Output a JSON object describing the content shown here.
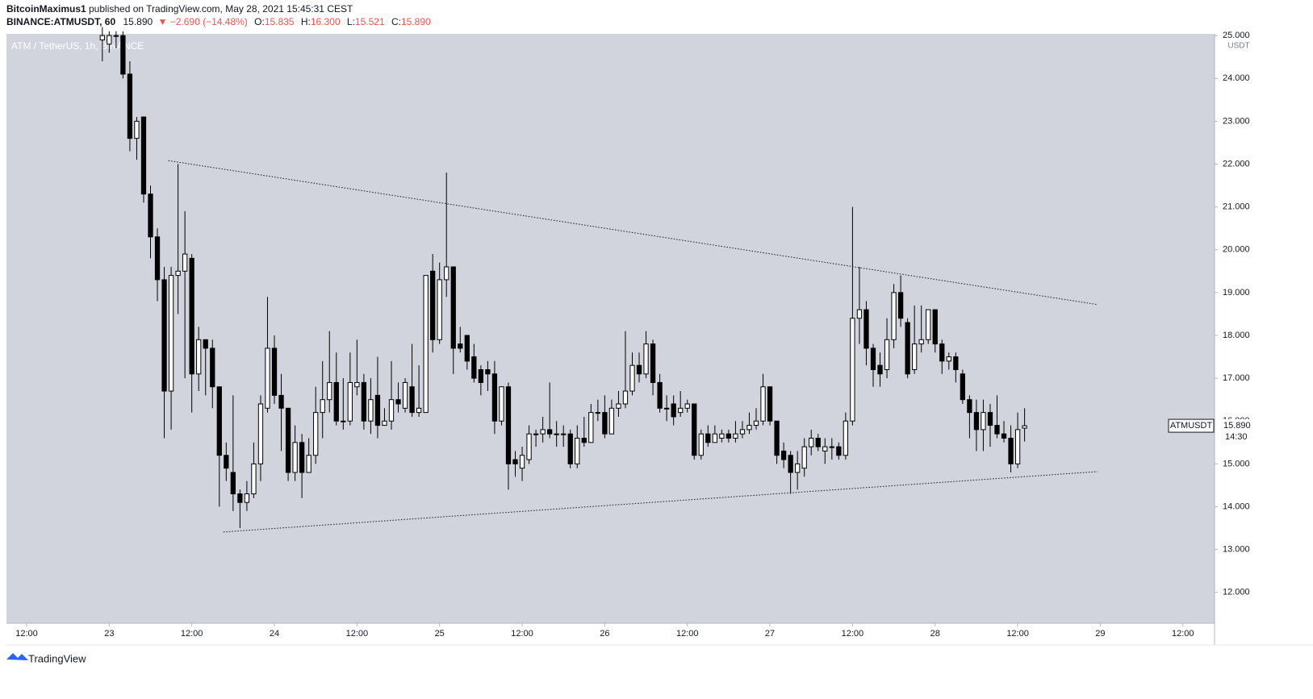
{
  "header": {
    "author": "BitcoinMaximus1",
    "published": "published on TradingView.com, May 28, 2021 15:45:31 CEST",
    "symbol": "BINANCE:ATMUSDT, 60",
    "last": "15.890",
    "change": "▼ −2.690 (−14.48%)",
    "o_label": "O:",
    "o": "15.835",
    "h_label": "H:",
    "h": "16.300",
    "l_label": "L:",
    "l": "15.521",
    "c_label": "C:",
    "c": "15.890"
  },
  "footer": {
    "brand": "TradingView"
  },
  "chart_data": {
    "type": "candlestick",
    "title": "ATM / TetherUS, 1h, BINANCE",
    "y_unit": "USDT",
    "up_color": "#ffffff",
    "down_color": "#000000",
    "grid": false,
    "xlim": [
      9.07,
      184.6
    ],
    "ylim": [
      11.28,
      25.04
    ],
    "xticks": [
      {
        "value": 12,
        "label": "12:00"
      },
      {
        "value": 24,
        "label": "23"
      },
      {
        "value": 36,
        "label": "12:00"
      },
      {
        "value": 48,
        "label": "24"
      },
      {
        "value": 60,
        "label": "12:00"
      },
      {
        "value": 72,
        "label": "25"
      },
      {
        "value": 84,
        "label": "12:00"
      },
      {
        "value": 96,
        "label": "26"
      },
      {
        "value": 108,
        "label": "12:00"
      },
      {
        "value": 120,
        "label": "27"
      },
      {
        "value": 132,
        "label": "12:00"
      },
      {
        "value": 144,
        "label": "28"
      },
      {
        "value": 156,
        "label": "12:00"
      },
      {
        "value": 168,
        "label": "29"
      },
      {
        "value": 180,
        "label": "12:00"
      }
    ],
    "yticks": [
      {
        "value": 12,
        "label": "12.000"
      },
      {
        "value": 13,
        "label": "13.000"
      },
      {
        "value": 14,
        "label": "14.000"
      },
      {
        "value": 15,
        "label": "15.000"
      },
      {
        "value": 16,
        "label": "16.000"
      },
      {
        "value": 17,
        "label": "17.000"
      },
      {
        "value": 18,
        "label": "18.000"
      },
      {
        "value": 19,
        "label": "19.000"
      },
      {
        "value": 20,
        "label": "20.000"
      },
      {
        "value": 21,
        "label": "21.000"
      },
      {
        "value": 22,
        "label": "22.000"
      },
      {
        "value": 23,
        "label": "23.000"
      },
      {
        "value": 24,
        "label": "24.000"
      },
      {
        "value": 25,
        "label": "25.000"
      }
    ],
    "x": [
      23,
      24,
      25,
      26,
      27,
      28,
      29,
      30,
      31,
      32,
      33,
      34,
      35,
      36,
      37,
      38,
      39,
      40,
      41,
      42,
      43,
      44,
      45,
      46,
      47,
      48,
      49,
      50,
      51,
      52,
      53,
      54,
      55,
      56,
      57,
      58,
      59,
      60,
      61,
      62,
      63,
      64,
      65,
      66,
      67,
      68,
      69,
      70,
      71,
      72,
      73,
      74,
      75,
      76,
      77,
      78,
      79,
      80,
      81,
      82,
      83,
      84,
      85,
      86,
      87,
      88,
      89,
      90,
      91,
      92,
      93,
      94,
      95,
      96,
      97,
      98,
      99,
      100,
      101,
      102,
      103,
      104,
      105,
      106,
      107,
      108,
      109,
      110,
      111,
      112,
      113,
      114,
      115,
      116,
      117,
      118,
      119,
      120,
      121,
      122,
      123,
      124,
      125,
      126,
      127,
      128,
      129,
      130,
      131,
      132,
      133,
      134,
      135,
      136,
      137,
      138,
      139,
      140,
      141,
      142,
      143,
      144,
      145,
      146,
      147,
      148,
      149,
      150,
      151,
      152,
      153,
      154,
      155,
      156,
      157
    ],
    "ohlc": [
      [
        24.9,
        25.2,
        24.4,
        25.0
      ],
      [
        24.8,
        25.1,
        24.6,
        25.0
      ],
      [
        25.0,
        25.1,
        24.7,
        25.0
      ],
      [
        25.0,
        25.1,
        24.0,
        24.1
      ],
      [
        24.1,
        24.4,
        22.3,
        22.6
      ],
      [
        22.6,
        23.1,
        22.1,
        23.0
      ],
      [
        23.1,
        23.1,
        21.1,
        21.3
      ],
      [
        21.3,
        21.5,
        19.8,
        20.3
      ],
      [
        20.3,
        20.5,
        18.8,
        19.3
      ],
      [
        19.3,
        19.6,
        15.6,
        16.7
      ],
      [
        16.7,
        19.6,
        15.8,
        19.4
      ],
      [
        19.4,
        22.0,
        18.5,
        19.5
      ],
      [
        19.5,
        20.9,
        17.0,
        19.9
      ],
      [
        19.8,
        19.9,
        16.2,
        17.1
      ],
      [
        17.1,
        18.2,
        16.7,
        17.9
      ],
      [
        17.9,
        17.9,
        16.6,
        17.7
      ],
      [
        17.7,
        17.9,
        16.3,
        16.8
      ],
      [
        16.8,
        16.8,
        14.0,
        15.2
      ],
      [
        15.2,
        15.5,
        14.6,
        14.9
      ],
      [
        14.8,
        16.6,
        13.9,
        14.3
      ],
      [
        14.3,
        14.4,
        13.5,
        14.1
      ],
      [
        14.1,
        14.6,
        13.9,
        14.3
      ],
      [
        14.3,
        15.5,
        14.2,
        15.0
      ],
      [
        15.0,
        16.6,
        14.6,
        16.4
      ],
      [
        16.3,
        18.9,
        16.2,
        17.7
      ],
      [
        17.7,
        18.0,
        16.4,
        16.6
      ],
      [
        16.6,
        17.1,
        15.3,
        16.3
      ],
      [
        16.3,
        16.3,
        14.6,
        14.8
      ],
      [
        14.8,
        15.9,
        14.6,
        15.5
      ],
      [
        15.5,
        15.7,
        14.2,
        14.8
      ],
      [
        14.8,
        15.6,
        14.8,
        15.2
      ],
      [
        15.2,
        16.8,
        15.0,
        16.2
      ],
      [
        16.2,
        17.4,
        15.6,
        16.5
      ],
      [
        16.5,
        18.1,
        16.2,
        16.9
      ],
      [
        16.9,
        17.6,
        15.9,
        16.0
      ],
      [
        16.0,
        17.0,
        15.8,
        16.0
      ],
      [
        16.0,
        17.6,
        15.9,
        16.9
      ],
      [
        16.8,
        17.9,
        16.6,
        16.9
      ],
      [
        16.9,
        17.1,
        15.8,
        16.0
      ],
      [
        16.0,
        17.0,
        15.7,
        16.5
      ],
      [
        16.6,
        17.5,
        15.6,
        15.9
      ],
      [
        15.9,
        16.3,
        15.9,
        16.0
      ],
      [
        16.0,
        17.4,
        15.8,
        16.5
      ],
      [
        16.5,
        16.9,
        16.2,
        16.4
      ],
      [
        16.3,
        17.0,
        16.2,
        16.9
      ],
      [
        16.8,
        17.8,
        16.1,
        16.2
      ],
      [
        16.2,
        17.3,
        16.1,
        16.3
      ],
      [
        16.2,
        19.4,
        16.2,
        19.4
      ],
      [
        19.5,
        19.9,
        17.6,
        17.9
      ],
      [
        17.9,
        19.7,
        17.8,
        19.3
      ],
      [
        19.3,
        21.8,
        18.9,
        19.6
      ],
      [
        19.6,
        19.6,
        17.1,
        17.7
      ],
      [
        17.8,
        18.2,
        17.6,
        17.7
      ],
      [
        18.0,
        18.0,
        17.2,
        17.4
      ],
      [
        17.5,
        17.8,
        16.9,
        17.0
      ],
      [
        17.2,
        17.3,
        16.6,
        16.9
      ],
      [
        17.2,
        17.4,
        16.7,
        17.1
      ],
      [
        17.1,
        17.4,
        15.7,
        16.0
      ],
      [
        16.0,
        16.8,
        15.9,
        16.8
      ],
      [
        16.8,
        16.9,
        14.4,
        15.0
      ],
      [
        15.1,
        15.3,
        14.7,
        15.0
      ],
      [
        14.9,
        15.4,
        14.6,
        15.2
      ],
      [
        15.1,
        15.9,
        15.0,
        15.7
      ],
      [
        15.7,
        15.8,
        15.4,
        15.7
      ],
      [
        15.7,
        16.1,
        15.5,
        15.8
      ],
      [
        15.8,
        16.9,
        15.6,
        15.7
      ],
      [
        15.7,
        16.0,
        15.4,
        15.7
      ],
      [
        15.7,
        15.9,
        15.4,
        15.7
      ],
      [
        15.7,
        15.8,
        14.9,
        15.0
      ],
      [
        15.0,
        15.9,
        14.9,
        15.6
      ],
      [
        15.6,
        16.1,
        15.4,
        15.5
      ],
      [
        15.5,
        16.4,
        15.5,
        16.2
      ],
      [
        16.2,
        16.5,
        16.0,
        16.2
      ],
      [
        16.2,
        16.6,
        15.6,
        15.7
      ],
      [
        15.7,
        16.5,
        15.7,
        16.3
      ],
      [
        16.3,
        16.7,
        16.1,
        16.4
      ],
      [
        16.4,
        18.1,
        16.3,
        16.7
      ],
      [
        16.7,
        17.6,
        16.6,
        17.3
      ],
      [
        17.3,
        17.6,
        16.9,
        17.1
      ],
      [
        17.1,
        18.1,
        17.0,
        17.8
      ],
      [
        17.8,
        17.9,
        16.6,
        16.9
      ],
      [
        16.9,
        17.1,
        16.2,
        16.3
      ],
      [
        16.3,
        16.6,
        16.0,
        16.3
      ],
      [
        16.4,
        16.6,
        15.9,
        16.1
      ],
      [
        16.2,
        16.7,
        16.1,
        16.3
      ],
      [
        16.3,
        16.5,
        16.2,
        16.4
      ],
      [
        16.4,
        16.4,
        15.1,
        15.2
      ],
      [
        15.2,
        15.8,
        15.1,
        15.7
      ],
      [
        15.7,
        15.9,
        15.4,
        15.5
      ],
      [
        15.5,
        15.9,
        15.5,
        15.7
      ],
      [
        15.6,
        15.8,
        15.5,
        15.7
      ],
      [
        15.7,
        15.8,
        15.5,
        15.6
      ],
      [
        15.6,
        16.0,
        15.5,
        15.7
      ],
      [
        15.7,
        16.0,
        15.6,
        15.8
      ],
      [
        15.8,
        16.2,
        15.7,
        15.9
      ],
      [
        15.9,
        16.3,
        15.8,
        16.0
      ],
      [
        16.0,
        17.1,
        15.9,
        16.8
      ],
      [
        16.8,
        16.8,
        15.9,
        16.0
      ],
      [
        16.0,
        16.0,
        15.0,
        15.2
      ],
      [
        15.3,
        15.5,
        14.9,
        15.1
      ],
      [
        15.2,
        15.3,
        14.3,
        14.8
      ],
      [
        14.8,
        15.3,
        14.4,
        15.0
      ],
      [
        14.9,
        15.6,
        14.7,
        15.4
      ],
      [
        15.4,
        15.8,
        15.2,
        15.6
      ],
      [
        15.6,
        15.7,
        15.3,
        15.4
      ],
      [
        15.3,
        15.6,
        15.0,
        15.4
      ],
      [
        15.4,
        15.6,
        15.1,
        15.4
      ],
      [
        15.4,
        15.5,
        15.1,
        15.2
      ],
      [
        15.2,
        16.2,
        15.1,
        16.0
      ],
      [
        16.0,
        21.0,
        15.9,
        18.4
      ],
      [
        18.4,
        19.6,
        17.8,
        18.6
      ],
      [
        18.6,
        18.8,
        17.3,
        17.7
      ],
      [
        17.7,
        17.8,
        16.8,
        17.2
      ],
      [
        17.3,
        17.6,
        16.8,
        17.1
      ],
      [
        17.2,
        18.4,
        17.0,
        17.9
      ],
      [
        17.9,
        19.2,
        17.7,
        19.0
      ],
      [
        19.0,
        19.4,
        18.2,
        18.4
      ],
      [
        18.3,
        18.4,
        17.0,
        17.1
      ],
      [
        17.2,
        18.7,
        17.1,
        17.8
      ],
      [
        17.8,
        18.7,
        17.6,
        17.9
      ],
      [
        17.9,
        18.6,
        17.8,
        18.6
      ],
      [
        18.6,
        18.6,
        17.6,
        17.8
      ],
      [
        17.8,
        17.9,
        17.1,
        17.4
      ],
      [
        17.4,
        17.6,
        17.2,
        17.5
      ],
      [
        17.5,
        17.6,
        16.9,
        17.2
      ],
      [
        17.1,
        17.2,
        16.4,
        16.5
      ],
      [
        16.5,
        16.6,
        15.6,
        16.2
      ],
      [
        16.2,
        16.5,
        15.3,
        15.8
      ],
      [
        15.8,
        16.5,
        15.3,
        16.2
      ],
      [
        16.2,
        16.4,
        15.4,
        15.9
      ],
      [
        15.9,
        16.6,
        15.6,
        15.7
      ],
      [
        15.7,
        16.0,
        15.5,
        15.6
      ],
      [
        15.6,
        15.9,
        14.8,
        15.0
      ],
      [
        15.0,
        16.2,
        14.9,
        15.8
      ],
      [
        15.835,
        16.3,
        15.521,
        15.89
      ]
    ],
    "trendlines": [
      {
        "x": [
          32.6,
          167.6
        ],
        "y": [
          22.08,
          18.72
        ]
      },
      {
        "x": [
          40.6,
          167.6
        ],
        "y": [
          13.41,
          14.82
        ]
      }
    ],
    "last_price": {
      "name": "ATMUSDT",
      "value": 15.89,
      "label": "15.890",
      "countdown": "14:30"
    }
  }
}
